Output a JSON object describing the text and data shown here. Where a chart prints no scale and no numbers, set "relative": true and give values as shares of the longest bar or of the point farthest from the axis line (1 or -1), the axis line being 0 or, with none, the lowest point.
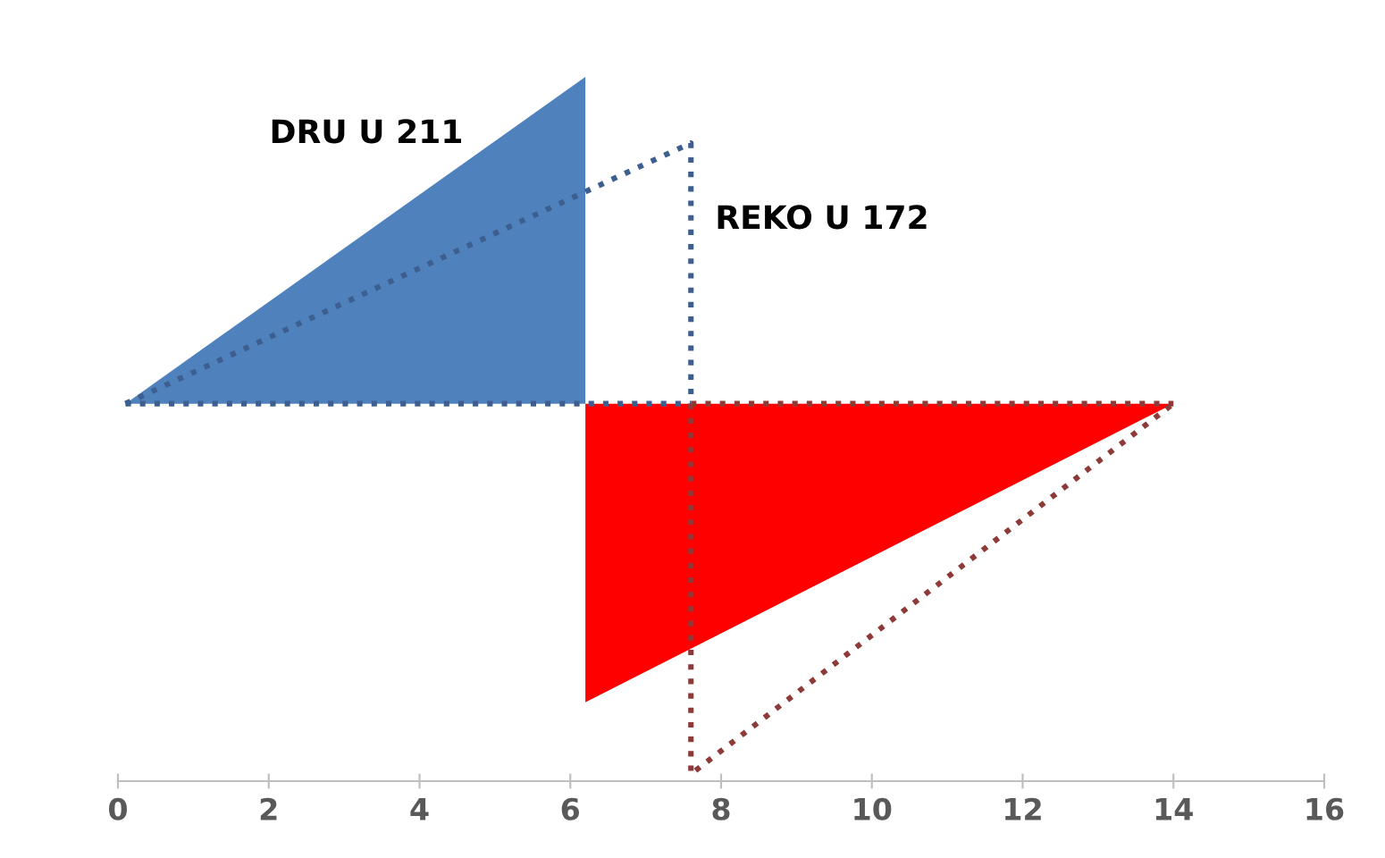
{
  "chart_data": {
    "type": "area",
    "relative": true,
    "xlim": [
      0,
      16
    ],
    "xticks": [
      0,
      2,
      4,
      6,
      8,
      10,
      12,
      14,
      16
    ],
    "grid": false,
    "legend": false,
    "series": [
      {
        "color": "#4f81bd",
        "x": [
          0.1,
          6.2,
          6.2
        ],
        "values": [
          0.536,
          1,
          0.536
        ]
      },
      {
        "color": "#ff0000",
        "x": [
          6.2,
          6.2,
          14
        ],
        "values": [
          0.536,
          0.112,
          0.536
        ]
      },
      {
        "type": "line",
        "line_style": "dotted",
        "color": "#3d5f8f",
        "x": [
          0.1,
          7.6,
          7.6
        ],
        "values": [
          0.536,
          0.906,
          0.536
        ]
      },
      {
        "type": "line",
        "line_style": "dotted",
        "color": "#3d5f8f",
        "x": [
          0.1,
          7.6
        ],
        "values": [
          0.536,
          0.536
        ]
      },
      {
        "type": "line",
        "line_style": "dotted",
        "color": "#8e3a38",
        "x": [
          7.6,
          7.6,
          14
        ],
        "values": [
          0.536,
          0.01,
          0.536
        ]
      },
      {
        "type": "line",
        "line_style": "dotted",
        "color": "#8e3a38",
        "x": [
          7.6,
          14
        ],
        "values": [
          0.536,
          0.536
        ]
      }
    ],
    "annotations": [
      "DRU U 211",
      "REKO U 172"
    ]
  }
}
